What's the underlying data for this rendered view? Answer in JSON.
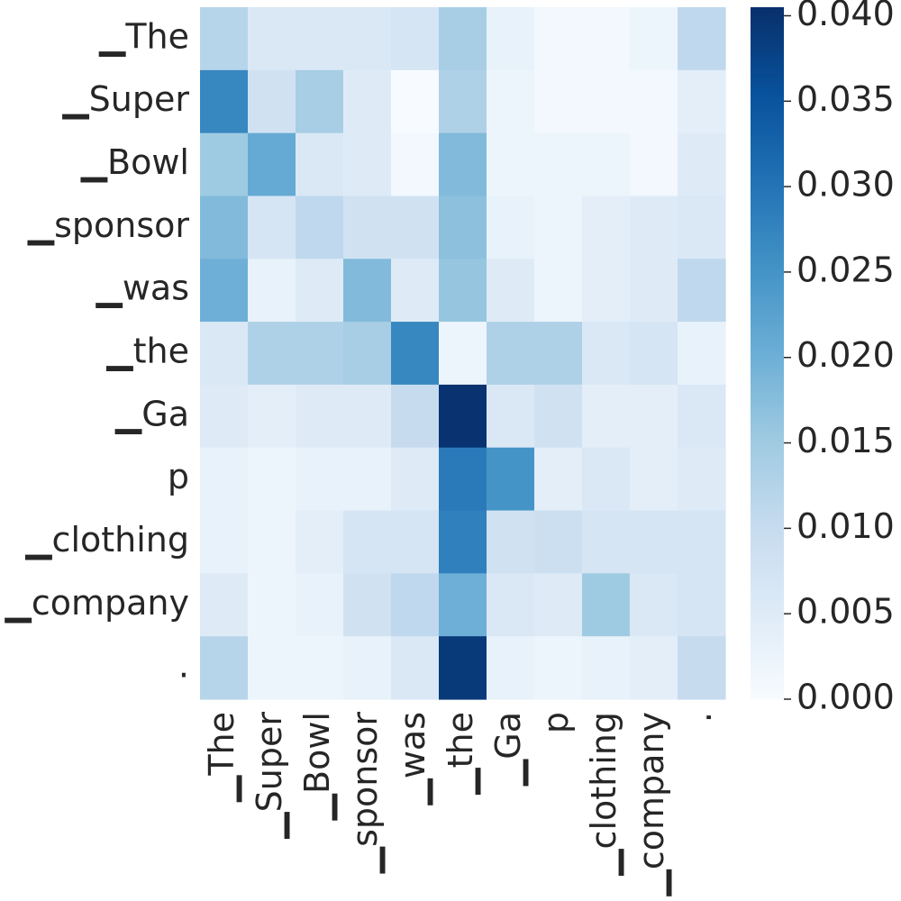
{
  "chart_data": {
    "type": "heatmap",
    "title": "",
    "xlabel": "",
    "ylabel": "",
    "x_categories": [
      "▁The",
      "▁Super",
      "▁Bowl",
      "▁sponsor",
      "▁was",
      "▁the",
      "▁Ga",
      "p",
      "▁clothing",
      "▁company",
      "."
    ],
    "y_categories": [
      "▁The",
      "▁Super",
      "▁Bowl",
      "▁sponsor",
      "▁was",
      "▁the",
      "▁Ga",
      "p",
      "▁clothing",
      "▁company",
      "."
    ],
    "values": [
      [
        0.012,
        0.006,
        0.006,
        0.006,
        0.007,
        0.014,
        0.003,
        0.001,
        0.001,
        0.002,
        0.011
      ],
      [
        0.027,
        0.008,
        0.014,
        0.005,
        0.0,
        0.013,
        0.002,
        0.001,
        0.001,
        0.001,
        0.004
      ],
      [
        0.015,
        0.021,
        0.006,
        0.005,
        0.001,
        0.018,
        0.002,
        0.002,
        0.002,
        0.001,
        0.005
      ],
      [
        0.018,
        0.007,
        0.011,
        0.008,
        0.008,
        0.017,
        0.003,
        0.002,
        0.004,
        0.005,
        0.006
      ],
      [
        0.02,
        0.003,
        0.005,
        0.018,
        0.005,
        0.016,
        0.005,
        0.002,
        0.004,
        0.005,
        0.011
      ],
      [
        0.006,
        0.013,
        0.013,
        0.014,
        0.027,
        0.002,
        0.013,
        0.013,
        0.006,
        0.007,
        0.003
      ],
      [
        0.005,
        0.004,
        0.005,
        0.005,
        0.01,
        0.04,
        0.006,
        0.008,
        0.004,
        0.004,
        0.006
      ],
      [
        0.003,
        0.002,
        0.003,
        0.003,
        0.005,
        0.029,
        0.025,
        0.004,
        0.006,
        0.004,
        0.005
      ],
      [
        0.003,
        0.002,
        0.004,
        0.007,
        0.007,
        0.028,
        0.008,
        0.009,
        0.007,
        0.007,
        0.007
      ],
      [
        0.005,
        0.002,
        0.003,
        0.008,
        0.011,
        0.02,
        0.006,
        0.005,
        0.015,
        0.006,
        0.007
      ],
      [
        0.012,
        0.002,
        0.002,
        0.003,
        0.006,
        0.039,
        0.003,
        0.002,
        0.003,
        0.004,
        0.01
      ]
    ],
    "colormap": "Blues",
    "vmin": 0.0,
    "vmax": 0.0405,
    "colorbar_ticks": [
      "0.000",
      "0.005",
      "0.010",
      "0.015",
      "0.020",
      "0.025",
      "0.030",
      "0.035",
      "0.040"
    ],
    "grid": false,
    "legend": "colorbar-right"
  }
}
